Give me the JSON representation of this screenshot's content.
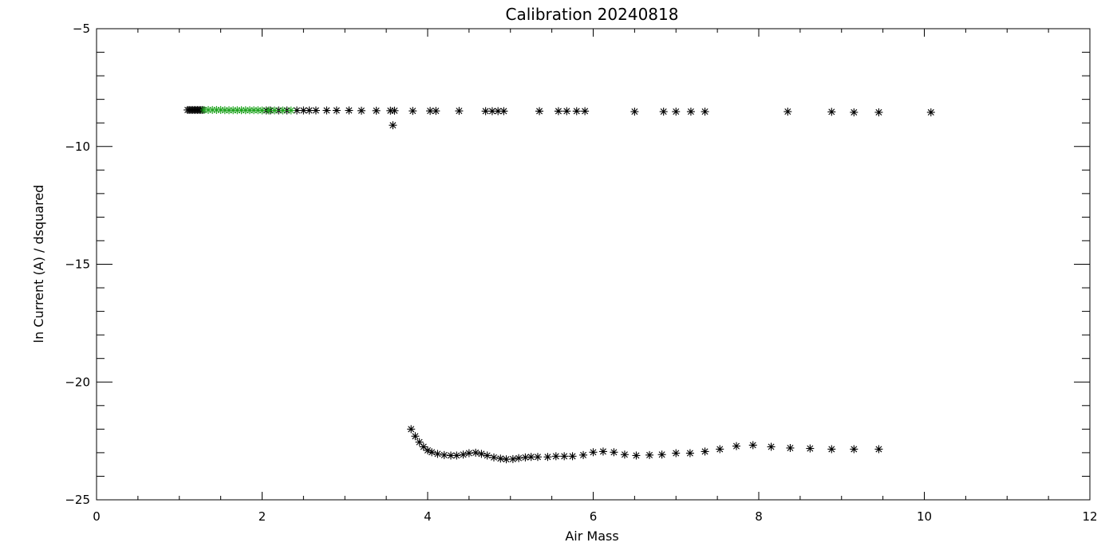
{
  "chart_data": {
    "type": "scatter",
    "title": "Calibration 20240818",
    "xlabel": "Air Mass",
    "ylabel": "ln Current (A) / dsquared",
    "xlim": [
      0,
      12
    ],
    "ylim": [
      -25,
      -5
    ],
    "x_ticks": [
      0,
      2,
      4,
      6,
      8,
      10,
      12
    ],
    "y_ticks": [
      -25,
      -20,
      -15,
      -10,
      -5
    ],
    "x_minor_step": 0.5,
    "y_minor_step": 1,
    "grid": false,
    "legend": "none",
    "marker": "asterisk",
    "series": [
      {
        "color": "#000000",
        "points": [
          [
            1.1,
            -8.45
          ],
          [
            1.12,
            -8.45
          ],
          [
            1.14,
            -8.45
          ],
          [
            1.16,
            -8.45
          ],
          [
            1.18,
            -8.45
          ],
          [
            1.2,
            -8.45
          ],
          [
            1.22,
            -8.45
          ],
          [
            1.24,
            -8.45
          ],
          [
            1.26,
            -8.45
          ],
          [
            1.28,
            -8.45
          ],
          [
            2.05,
            -8.47
          ],
          [
            2.1,
            -8.47
          ],
          [
            2.2,
            -8.47
          ],
          [
            2.3,
            -8.47
          ],
          [
            2.42,
            -8.47
          ],
          [
            2.5,
            -8.47
          ],
          [
            2.57,
            -8.47
          ],
          [
            2.65,
            -8.47
          ],
          [
            2.78,
            -8.47
          ],
          [
            2.9,
            -8.47
          ],
          [
            3.05,
            -8.47
          ],
          [
            3.2,
            -8.48
          ],
          [
            3.38,
            -8.48
          ],
          [
            3.55,
            -8.48
          ],
          [
            3.58,
            -9.1
          ],
          [
            3.6,
            -8.48
          ],
          [
            3.82,
            -8.49
          ],
          [
            4.03,
            -8.49
          ],
          [
            4.1,
            -8.49
          ],
          [
            4.38,
            -8.49
          ],
          [
            4.7,
            -8.5
          ],
          [
            4.78,
            -8.5
          ],
          [
            4.85,
            -8.5
          ],
          [
            4.92,
            -8.5
          ],
          [
            5.35,
            -8.5
          ],
          [
            5.58,
            -8.5
          ],
          [
            5.68,
            -8.5
          ],
          [
            5.8,
            -8.5
          ],
          [
            5.9,
            -8.5
          ],
          [
            6.5,
            -8.52
          ],
          [
            6.85,
            -8.52
          ],
          [
            7.0,
            -8.52
          ],
          [
            7.18,
            -8.52
          ],
          [
            7.35,
            -8.52
          ],
          [
            8.35,
            -8.52
          ],
          [
            8.88,
            -8.53
          ],
          [
            9.15,
            -8.55
          ],
          [
            9.45,
            -8.55
          ],
          [
            10.08,
            -8.55
          ],
          [
            3.8,
            -22.0
          ],
          [
            3.85,
            -22.3
          ],
          [
            3.9,
            -22.55
          ],
          [
            3.95,
            -22.75
          ],
          [
            4.0,
            -22.9
          ],
          [
            4.05,
            -22.98
          ],
          [
            4.12,
            -23.05
          ],
          [
            4.2,
            -23.1
          ],
          [
            4.28,
            -23.12
          ],
          [
            4.35,
            -23.12
          ],
          [
            4.43,
            -23.08
          ],
          [
            4.5,
            -23.02
          ],
          [
            4.58,
            -23.0
          ],
          [
            4.65,
            -23.05
          ],
          [
            4.72,
            -23.12
          ],
          [
            4.8,
            -23.2
          ],
          [
            4.88,
            -23.25
          ],
          [
            4.95,
            -23.28
          ],
          [
            5.03,
            -23.27
          ],
          [
            5.1,
            -23.23
          ],
          [
            5.18,
            -23.2
          ],
          [
            5.25,
            -23.18
          ],
          [
            5.33,
            -23.18
          ],
          [
            5.45,
            -23.18
          ],
          [
            5.55,
            -23.15
          ],
          [
            5.65,
            -23.15
          ],
          [
            5.75,
            -23.15
          ],
          [
            5.88,
            -23.1
          ],
          [
            6.0,
            -22.98
          ],
          [
            6.12,
            -22.95
          ],
          [
            6.25,
            -22.98
          ],
          [
            6.38,
            -23.08
          ],
          [
            6.52,
            -23.12
          ],
          [
            6.68,
            -23.1
          ],
          [
            6.83,
            -23.08
          ],
          [
            7.0,
            -23.02
          ],
          [
            7.17,
            -23.02
          ],
          [
            7.35,
            -22.95
          ],
          [
            7.53,
            -22.85
          ],
          [
            7.73,
            -22.72
          ],
          [
            7.93,
            -22.68
          ],
          [
            8.15,
            -22.75
          ],
          [
            8.38,
            -22.8
          ],
          [
            8.62,
            -22.82
          ],
          [
            8.88,
            -22.85
          ],
          [
            9.15,
            -22.85
          ],
          [
            9.45,
            -22.85
          ]
        ]
      },
      {
        "color": "#1fa31f",
        "points": [
          [
            1.3,
            -8.45
          ],
          [
            1.35,
            -8.45
          ],
          [
            1.4,
            -8.45
          ],
          [
            1.45,
            -8.45
          ],
          [
            1.5,
            -8.45
          ],
          [
            1.55,
            -8.46
          ],
          [
            1.6,
            -8.46
          ],
          [
            1.65,
            -8.46
          ],
          [
            1.7,
            -8.46
          ],
          [
            1.75,
            -8.46
          ],
          [
            1.8,
            -8.46
          ],
          [
            1.85,
            -8.46
          ],
          [
            1.9,
            -8.46
          ],
          [
            1.95,
            -8.46
          ],
          [
            2.0,
            -8.47
          ],
          [
            2.08,
            -8.47
          ],
          [
            2.15,
            -8.47
          ],
          [
            2.25,
            -8.47
          ],
          [
            2.35,
            -8.47
          ]
        ]
      }
    ]
  }
}
